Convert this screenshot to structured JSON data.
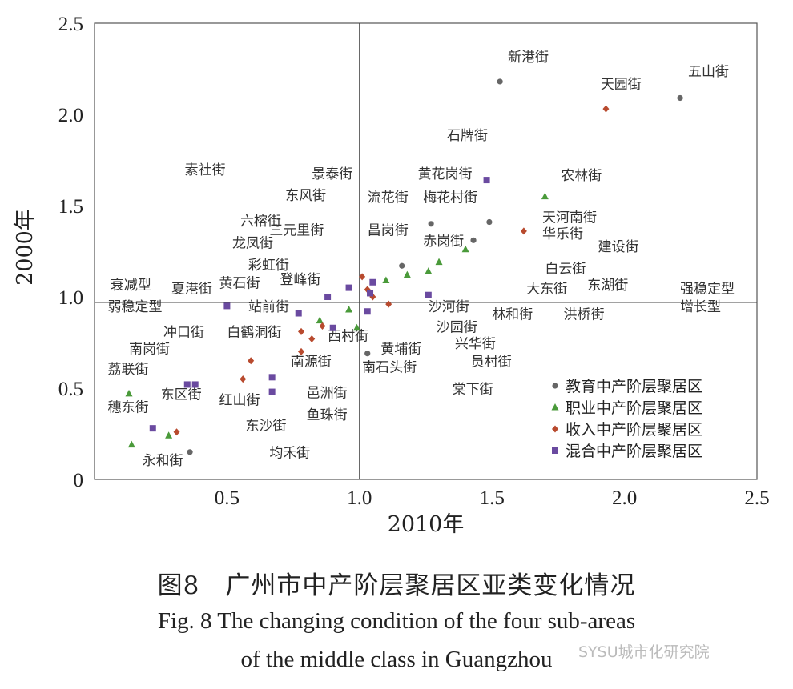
{
  "chart_data": {
    "type": "scatter",
    "xlabel": "2010年",
    "ylabel": "2000年",
    "xlim": [
      0,
      2.5
    ],
    "ylim": [
      0,
      2.5
    ],
    "xticks": [
      "0.5",
      "1.0",
      "1.5",
      "2.0",
      "2.5"
    ],
    "yticks": [
      "0",
      "0.5",
      "1.0",
      "1.5",
      "2.0",
      "2.5"
    ],
    "reference_lines": {
      "x": 1.0,
      "y": 0.97
    },
    "legend_position": "bottom-right",
    "colors": {
      "education": "#666666",
      "vocation": "#4a9a3a",
      "income": "#b84a2e",
      "mixed": "#6a4aa0"
    },
    "series": [
      {
        "name": "教育中产阶层聚居区",
        "marker": "circle",
        "color_key": "education",
        "points": [
          [
            1.53,
            2.18
          ],
          [
            2.21,
            2.09
          ],
          [
            1.27,
            1.4
          ],
          [
            1.49,
            1.41
          ],
          [
            1.43,
            1.31
          ],
          [
            1.16,
            1.17
          ],
          [
            1.03,
            0.69
          ],
          [
            0.36,
            0.15
          ]
        ]
      },
      {
        "name": "职业中产阶层聚居区",
        "marker": "triangle",
        "color_key": "vocation",
        "points": [
          [
            1.7,
            1.55
          ],
          [
            1.4,
            1.26
          ],
          [
            1.3,
            1.19
          ],
          [
            1.26,
            1.14
          ],
          [
            1.18,
            1.12
          ],
          [
            1.1,
            1.09
          ],
          [
            0.96,
            0.93
          ],
          [
            0.99,
            0.83
          ],
          [
            0.85,
            0.87
          ],
          [
            0.13,
            0.47
          ],
          [
            0.14,
            0.19
          ],
          [
            0.28,
            0.24
          ]
        ]
      },
      {
        "name": "收入中产阶层聚居区",
        "marker": "diamond",
        "color_key": "income",
        "points": [
          [
            1.93,
            2.03
          ],
          [
            1.62,
            1.36
          ],
          [
            1.01,
            1.11
          ],
          [
            1.03,
            1.04
          ],
          [
            1.05,
            1.0
          ],
          [
            1.11,
            0.96
          ],
          [
            0.78,
            0.81
          ],
          [
            0.82,
            0.77
          ],
          [
            0.78,
            0.7
          ],
          [
            0.59,
            0.65
          ],
          [
            0.56,
            0.55
          ],
          [
            0.86,
            0.84
          ],
          [
            0.31,
            0.26
          ]
        ]
      },
      {
        "name": "混合中产阶层聚居区",
        "marker": "square",
        "color_key": "mixed",
        "points": [
          [
            1.48,
            1.64
          ],
          [
            1.26,
            1.01
          ],
          [
            1.05,
            1.08
          ],
          [
            0.96,
            1.05
          ],
          [
            1.04,
            1.02
          ],
          [
            0.88,
            1.0
          ],
          [
            0.5,
            0.95
          ],
          [
            0.77,
            0.91
          ],
          [
            1.03,
            0.92
          ],
          [
            0.9,
            0.83
          ],
          [
            0.67,
            0.56
          ],
          [
            0.67,
            0.48
          ],
          [
            0.35,
            0.52
          ],
          [
            0.38,
            0.52
          ],
          [
            0.22,
            0.28
          ]
        ]
      }
    ],
    "annotations": [
      {
        "text": "新港街",
        "x": 1.56,
        "y": 2.29
      },
      {
        "text": "五山街",
        "x": 2.24,
        "y": 2.21
      },
      {
        "text": "天园街",
        "x": 1.91,
        "y": 2.14
      },
      {
        "text": "石牌街",
        "x": 1.33,
        "y": 1.86
      },
      {
        "text": "素社街",
        "x": 0.34,
        "y": 1.67
      },
      {
        "text": "景泰街",
        "x": 0.82,
        "y": 1.65
      },
      {
        "text": "黄花岗街",
        "x": 1.22,
        "y": 1.65
      },
      {
        "text": "农林街",
        "x": 1.76,
        "y": 1.64
      },
      {
        "text": "东风街",
        "x": 0.72,
        "y": 1.53
      },
      {
        "text": "流花街",
        "x": 1.03,
        "y": 1.52
      },
      {
        "text": "梅花村街",
        "x": 1.24,
        "y": 1.52
      },
      {
        "text": "六榕街",
        "x": 0.55,
        "y": 1.39
      },
      {
        "text": "三元里街",
        "x": 0.66,
        "y": 1.34
      },
      {
        "text": "昌岗街",
        "x": 1.03,
        "y": 1.34
      },
      {
        "text": "天河南街",
        "x": 1.69,
        "y": 1.41
      },
      {
        "text": "华乐街",
        "x": 1.69,
        "y": 1.32
      },
      {
        "text": "龙凤街",
        "x": 0.52,
        "y": 1.27
      },
      {
        "text": "赤岗街",
        "x": 1.24,
        "y": 1.28
      },
      {
        "text": "建设街",
        "x": 1.9,
        "y": 1.25
      },
      {
        "text": "彩虹街",
        "x": 0.58,
        "y": 1.15
      },
      {
        "text": "白云街",
        "x": 1.7,
        "y": 1.13
      },
      {
        "text": "衰减型",
        "x": 0.06,
        "y": 1.04
      },
      {
        "text": "夏港街",
        "x": 0.29,
        "y": 1.02
      },
      {
        "text": "黄石街",
        "x": 0.47,
        "y": 1.05
      },
      {
        "text": "登峰街",
        "x": 0.7,
        "y": 1.07
      },
      {
        "text": "大东街",
        "x": 1.63,
        "y": 1.02
      },
      {
        "text": "东湖街",
        "x": 1.86,
        "y": 1.04
      },
      {
        "text": "强稳定型",
        "x": 2.21,
        "y": 1.02
      },
      {
        "text": "弱稳定型",
        "x": 0.05,
        "y": 0.92
      },
      {
        "text": "站前街",
        "x": 0.58,
        "y": 0.92
      },
      {
        "text": "沙河街",
        "x": 1.26,
        "y": 0.92
      },
      {
        "text": "林和街",
        "x": 1.5,
        "y": 0.88
      },
      {
        "text": "洪桥街",
        "x": 1.77,
        "y": 0.88
      },
      {
        "text": "增长型",
        "x": 2.21,
        "y": 0.92
      },
      {
        "text": "冲口街",
        "x": 0.26,
        "y": 0.78
      },
      {
        "text": "白鹤洞街",
        "x": 0.5,
        "y": 0.78
      },
      {
        "text": "西村街",
        "x": 0.88,
        "y": 0.76
      },
      {
        "text": "沙园街",
        "x": 1.29,
        "y": 0.81
      },
      {
        "text": "兴华街",
        "x": 1.36,
        "y": 0.72
      },
      {
        "text": "黄埔街",
        "x": 1.08,
        "y": 0.69
      },
      {
        "text": "南岗街",
        "x": 0.13,
        "y": 0.69
      },
      {
        "text": "南源街",
        "x": 0.74,
        "y": 0.62
      },
      {
        "text": "员村街",
        "x": 1.42,
        "y": 0.62
      },
      {
        "text": "荔联街",
        "x": 0.05,
        "y": 0.58
      },
      {
        "text": "南石头街",
        "x": 1.01,
        "y": 0.59
      },
      {
        "text": "棠下街",
        "x": 1.35,
        "y": 0.47
      },
      {
        "text": "东区街",
        "x": 0.25,
        "y": 0.44
      },
      {
        "text": "红山街",
        "x": 0.47,
        "y": 0.41
      },
      {
        "text": "邑洲街",
        "x": 0.8,
        "y": 0.45
      },
      {
        "text": "穗东街",
        "x": 0.05,
        "y": 0.37
      },
      {
        "text": "鱼珠街",
        "x": 0.8,
        "y": 0.33
      },
      {
        "text": "东沙街",
        "x": 0.57,
        "y": 0.27
      },
      {
        "text": "永和街",
        "x": 0.18,
        "y": 0.08
      },
      {
        "text": "均禾街",
        "x": 0.66,
        "y": 0.12
      }
    ]
  },
  "caption": {
    "zh": "图8　广州市中产阶层聚居区亚类变化情况",
    "en_line1": "Fig. 8   The changing condition of the four sub-areas",
    "en_line2": "of the middle class in Guangzhou"
  },
  "watermark": "SYSU城市化研究院"
}
